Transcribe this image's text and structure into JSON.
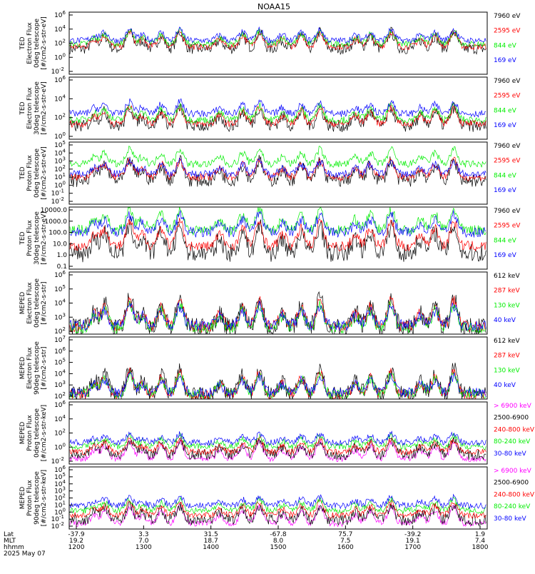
{
  "title": "NOAA15",
  "colors": {
    "black": "#000000",
    "red": "#ff0000",
    "green": "#00ee00",
    "blue": "#0000ff",
    "magenta": "#ff00ff"
  },
  "chart_data": {
    "type": "line",
    "x_axis": {
      "ticks": [
        {
          "lat": "-37.9",
          "mlt": "19.2",
          "hhmm": "1200"
        },
        {
          "lat": "3.3",
          "mlt": "7.0",
          "hhmm": "1300"
        },
        {
          "lat": "31.5",
          "mlt": "18.7",
          "hhmm": "1400"
        },
        {
          "lat": "-67.8",
          "mlt": "8.0",
          "hhmm": "1500"
        },
        {
          "lat": "75.7",
          "mlt": "7.5",
          "hhmm": "1600"
        },
        {
          "lat": "-39.2",
          "mlt": "19.1",
          "hhmm": "1700"
        },
        {
          "lat": "1.9",
          "mlt": "7.4",
          "hhmm": "1800"
        }
      ],
      "row_labels": [
        "Lat",
        "MLT",
        "hhmm"
      ],
      "date": "2025 May 07"
    },
    "panels": [
      {
        "ylabel": [
          "TED",
          "Electron Flux",
          "0deg telescope",
          "[#/cm2-s-str-eV]"
        ],
        "yticks": [
          {
            "label": "10",
            "exp": "6"
          },
          {
            "label": "10",
            "exp": "4"
          },
          {
            "label": "10",
            "exp": "2"
          },
          {
            "label": "10",
            "exp": "0"
          },
          {
            "label": "10",
            "exp": "-2"
          }
        ],
        "ylim_log10": [
          -2.5,
          6.5
        ],
        "legend": [
          {
            "label": "7960 eV",
            "color": "#000000"
          },
          {
            "label": "2595 eV",
            "color": "#ff0000"
          },
          {
            "label": "844 eV",
            "color": "#00ee00"
          },
          {
            "label": "169 eV",
            "color": "#0000ff"
          }
        ],
        "series_levels_log10": [
          1.2,
          1.5,
          1.9,
          2.4
        ]
      },
      {
        "ylabel": [
          "TED",
          "Electron Flux",
          "30deg telescope",
          "[#/cm2-s-str-eV]"
        ],
        "yticks": [
          {
            "label": "10",
            "exp": "6"
          },
          {
            "label": "10",
            "exp": "4"
          },
          {
            "label": "10",
            "exp": "2"
          },
          {
            "label": "10",
            "exp": "0"
          }
        ],
        "ylim_log10": [
          -0.5,
          7.5
        ],
        "legend": [
          {
            "label": "7960 eV",
            "color": "#000000"
          },
          {
            "label": "2595 eV",
            "color": "#ff0000"
          },
          {
            "label": "844 eV",
            "color": "#00ee00"
          },
          {
            "label": "169 eV",
            "color": "#0000ff"
          }
        ],
        "series_levels_log10": [
          1.2,
          1.5,
          2.0,
          2.8
        ]
      },
      {
        "ylabel": [
          "TED",
          "Proton Flux",
          "0deg telescope",
          "[#/cm2-s-str-eV]"
        ],
        "yticks": [
          {
            "label": "10",
            "exp": "5"
          },
          {
            "label": "10",
            "exp": "4"
          },
          {
            "label": "10",
            "exp": "3"
          },
          {
            "label": "10",
            "exp": "2"
          },
          {
            "label": "10",
            "exp": "1"
          },
          {
            "label": "10",
            "exp": "0"
          },
          {
            "label": "10",
            "exp": "-1"
          },
          {
            "label": "10",
            "exp": "-2"
          }
        ],
        "ylim_log10": [
          -2.3,
          5.3
        ],
        "legend": [
          {
            "label": "7960 eV",
            "color": "#000000"
          },
          {
            "label": "2595 eV",
            "color": "#ff0000"
          },
          {
            "label": "844 eV",
            "color": "#00ee00"
          },
          {
            "label": "169 eV",
            "color": "#0000ff"
          }
        ],
        "series_levels_log10": [
          0.6,
          1.0,
          2.6,
          1.4
        ]
      },
      {
        "ylabel": [
          "TED",
          "Proton Flux",
          "30deg telescope",
          "[#/cm2-s-str-eV]"
        ],
        "yticks": [
          {
            "label": "10000.0"
          },
          {
            "label": "1000.0"
          },
          {
            "label": "100.0"
          },
          {
            "label": "10.0"
          },
          {
            "label": "1.0"
          },
          {
            "label": "0.1"
          }
        ],
        "ylim_log10": [
          -1.1,
          4.3
        ],
        "legend": [
          {
            "label": "7960 eV",
            "color": "#000000"
          },
          {
            "label": "2595 eV",
            "color": "#ff0000"
          },
          {
            "label": "844 eV",
            "color": "#00ee00"
          },
          {
            "label": "169 eV",
            "color": "#0000ff"
          }
        ],
        "series_levels_log10": [
          0.3,
          0.9,
          2.3,
          2.1
        ]
      },
      {
        "ylabel": [
          "MEPED",
          "Electron Flux",
          "0deg telescope",
          "[#/cm2-s-str]"
        ],
        "yticks": [
          {
            "label": "10",
            "exp": "6"
          },
          {
            "label": "10",
            "exp": "5"
          },
          {
            "label": "10",
            "exp": "4"
          },
          {
            "label": "10",
            "exp": "3"
          },
          {
            "label": "10",
            "exp": "2"
          }
        ],
        "ylim_log10": [
          1.7,
          6.7
        ],
        "legend": [
          {
            "label": "612 keV",
            "color": "#000000"
          },
          {
            "label": "287 keV",
            "color": "#ff0000"
          },
          {
            "label": "130 keV",
            "color": "#00ee00"
          },
          {
            "label": "40 keV",
            "color": "#0000ff"
          }
        ],
        "series_levels_log10": [
          2.2,
          2.3,
          2.2,
          2.4
        ]
      },
      {
        "ylabel": [
          "MEPED",
          "Electron Flux",
          "90deg telescope",
          "[#/cm2-s-str]"
        ],
        "yticks": [
          {
            "label": "10",
            "exp": "7"
          },
          {
            "label": "10",
            "exp": "6"
          },
          {
            "label": "10",
            "exp": "5"
          },
          {
            "label": "10",
            "exp": "4"
          },
          {
            "label": "10",
            "exp": "3"
          },
          {
            "label": "10",
            "exp": "2"
          }
        ],
        "ylim_log10": [
          1.6,
          7.4
        ],
        "legend": [
          {
            "label": "612 keV",
            "color": "#000000"
          },
          {
            "label": "287 keV",
            "color": "#ff0000"
          },
          {
            "label": "130 keV",
            "color": "#00ee00"
          },
          {
            "label": "40 keV",
            "color": "#0000ff"
          }
        ],
        "series_levels_log10": [
          2.0,
          2.0,
          2.1,
          2.2
        ]
      },
      {
        "ylabel": [
          "MEPED",
          "Proton Flux",
          "0deg telescope",
          "[#/cm2-s-str-keV]"
        ],
        "yticks": [
          {
            "label": "10",
            "exp": "6"
          },
          {
            "label": "10",
            "exp": "4"
          },
          {
            "label": "10",
            "exp": "2"
          },
          {
            "label": "10",
            "exp": "0"
          },
          {
            "label": "10",
            "exp": "-2"
          }
        ],
        "ylim_log10": [
          -2.6,
          6.6
        ],
        "legend": [
          {
            "label": "> 6900 keV",
            "color": "#ff00ff"
          },
          {
            "label": "2500-6900",
            "color": "#000000"
          },
          {
            "label": "240-800 keV",
            "color": "#ff0000"
          },
          {
            "label": "80-240 keV",
            "color": "#00ee00"
          },
          {
            "label": "30-80 keV",
            "color": "#0000ff"
          }
        ],
        "series_levels_log10": [
          -1.8,
          -1.2,
          -0.8,
          0.0,
          0.6
        ]
      },
      {
        "ylabel": [
          "MEPED",
          "Proton Flux",
          "90deg telescope",
          "[#/cm2-s-str-keV]"
        ],
        "yticks": [
          {
            "label": "10",
            "exp": "6"
          },
          {
            "label": "10",
            "exp": "5"
          },
          {
            "label": "10",
            "exp": "4"
          },
          {
            "label": "10",
            "exp": "3"
          },
          {
            "label": "10",
            "exp": "2"
          },
          {
            "label": "10",
            "exp": "1"
          },
          {
            "label": "10",
            "exp": "0"
          },
          {
            "label": "10",
            "exp": "-1"
          },
          {
            "label": "10",
            "exp": "-2"
          }
        ],
        "ylim_log10": [
          -2.6,
          6.4
        ],
        "legend": [
          {
            "label": "> 6900 keV",
            "color": "#ff00ff"
          },
          {
            "label": "2500-6900",
            "color": "#000000"
          },
          {
            "label": "240-800 keV",
            "color": "#ff0000"
          },
          {
            "label": "80-240 keV",
            "color": "#00ee00"
          },
          {
            "label": "30-80 keV",
            "color": "#0000ff"
          }
        ],
        "series_levels_log10": [
          -1.8,
          -1.3,
          -0.6,
          0.1,
          0.8
        ]
      }
    ],
    "pass_centers_hhmm_fraction": [
      0.06,
      0.085,
      0.145,
      0.175,
      0.22,
      0.265,
      0.36,
      0.415,
      0.455,
      0.51,
      0.555,
      0.6,
      0.685,
      0.72,
      0.77,
      0.84,
      0.875,
      0.92
    ]
  }
}
